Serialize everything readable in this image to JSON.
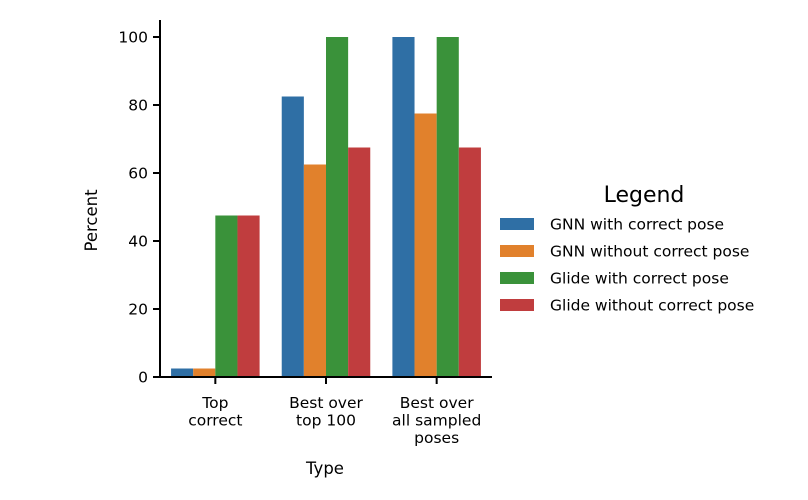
{
  "chart_data": {
    "type": "bar",
    "xlabel": "Type",
    "ylabel": "Percent",
    "ylim": [
      0,
      105
    ],
    "yticks": [
      0,
      20,
      40,
      60,
      80,
      100
    ],
    "categories": [
      [
        "Top",
        "correct"
      ],
      [
        "Best over",
        "top 100"
      ],
      [
        "Best over",
        "all sampled",
        "poses"
      ]
    ],
    "series": [
      {
        "name": "GNN with correct pose",
        "color": "#2f6fa5",
        "values": [
          2.5,
          82.5,
          100
        ]
      },
      {
        "name": "GNN without correct pose",
        "color": "#e1812c",
        "values": [
          2.5,
          62.5,
          77.5
        ]
      },
      {
        "name": "Glide with correct pose",
        "color": "#3a923a",
        "values": [
          47.5,
          100,
          100
        ]
      },
      {
        "name": "Glide without correct pose",
        "color": "#c03d3e",
        "values": [
          47.5,
          67.5,
          67.5
        ]
      }
    ],
    "legend": {
      "title": "Legend",
      "position": "right"
    },
    "grid": false
  }
}
